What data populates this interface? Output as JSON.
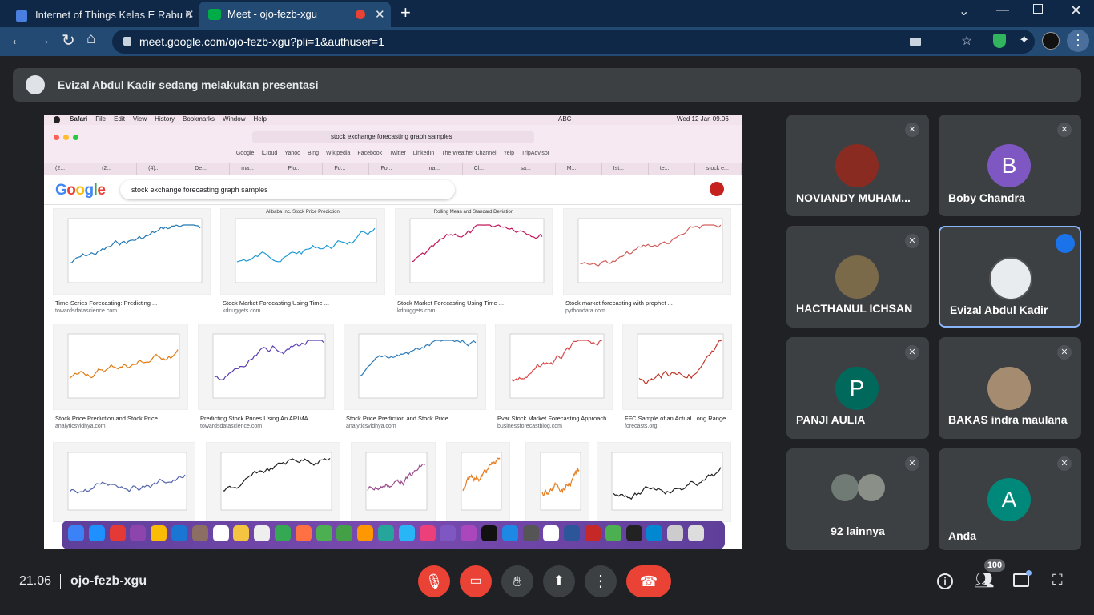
{
  "browser": {
    "tabs": [
      "Internet of Things Kelas E Rabu 0",
      "Meet - ojo-fezb-xgu"
    ],
    "url": "meet.google.com/ojo-fezb-xgu?pli=1&authuser=1"
  },
  "banner": "Evizal Abdul Kadir sedang melakukan presentasi",
  "shared_screen": {
    "menu": [
      "Safari",
      "File",
      "Edit",
      "View",
      "History",
      "Bookmarks",
      "Window",
      "Help"
    ],
    "status_text": "ABC",
    "clock": "Wed 12 Jan 09.06",
    "address": "stock exchange forecasting graph samples",
    "favorites": [
      "Google",
      "iCloud",
      "Yahoo",
      "Bing",
      "Wikipedia",
      "Facebook",
      "Twitter",
      "LinkedIn",
      "The Weather Channel",
      "Yelp",
      "TripAdvisor"
    ],
    "safari_tabs": [
      "(2...",
      "(2...",
      "(4)...",
      "De...",
      "ma...",
      "Plo...",
      "Fo...",
      "Fo...",
      "ma...",
      "Cl...",
      "sa...",
      "M...",
      "Ist...",
      "te...",
      "stock e..."
    ],
    "logo": "Google",
    "search_query": "stock exchange forecasting graph samples",
    "results": [
      {
        "title": "Time-Series Forecasting: Predicting ...",
        "source": "towardsdatascience.com"
      },
      {
        "title": "Stock Market Forecasting Using Time ...",
        "source": "kdnuggets.com",
        "image_title": "Alibaba Inc. Stock Price Prediction"
      },
      {
        "title": "Stock Market Forecasting Using Time ...",
        "source": "kdnuggets.com",
        "image_title": "Rolling Mean and Standard Deviation"
      },
      {
        "title": "Stock market forecasting with prophet ...",
        "source": "pythondata.com"
      },
      {
        "title": "Stock Price Prediction and Stock Price ...",
        "source": "analyticsvidhya.com"
      },
      {
        "title": "Predicting Stock Prices Using An ARIMA ...",
        "source": "towardsdatascience.com"
      },
      {
        "title": "Stock Price Prediction and Stock Price ...",
        "source": "analyticsvidhya.com"
      },
      {
        "title": "Pvar Stock Market Forecasting Approach...",
        "source": "businessforecastblog.com"
      },
      {
        "title": "FFC Sample of an Actual Long Range ...",
        "source": "forecasts.org"
      }
    ]
  },
  "participants": [
    {
      "name": "NOVIANDY MUHAM..."
    },
    {
      "name": "Boby Chandra",
      "initial": "B"
    },
    {
      "name": "HACTHANUL ICHSAN"
    },
    {
      "name": "Evizal Abdul Kadir"
    },
    {
      "name": "PANJI AULIA",
      "initial": "P"
    },
    {
      "name": "BAKAS indra maulana"
    },
    {
      "name": "92 lainnya"
    },
    {
      "name": "Anda",
      "initial": "A"
    }
  ],
  "footer": {
    "time": "21.06",
    "meeting_code": "ojo-fezb-xgu",
    "participant_count": 100
  }
}
